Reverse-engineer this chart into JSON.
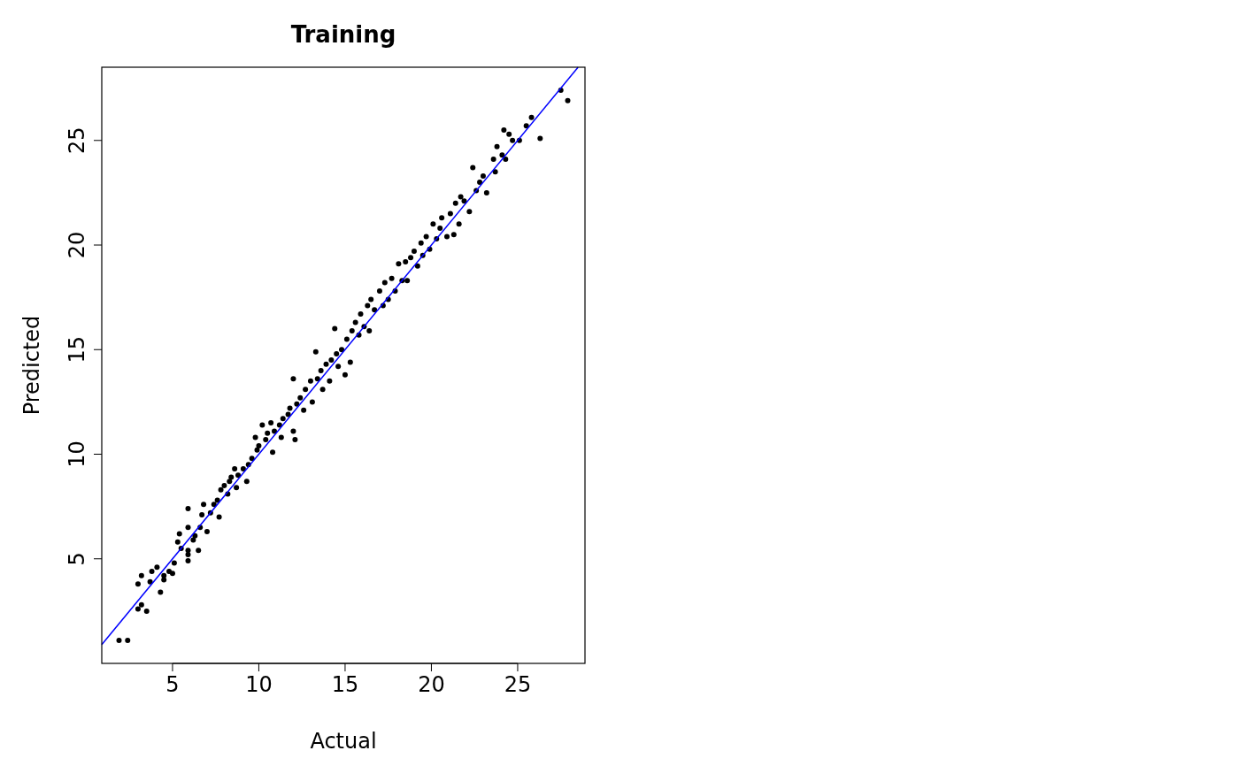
{
  "chart_data": {
    "type": "scatter",
    "title": "Training",
    "xlabel": "Actual",
    "ylabel": "Predicted",
    "xlim": [
      0.9,
      28.9
    ],
    "ylim": [
      0,
      28.5
    ],
    "xticks": [
      5,
      10,
      15,
      20,
      25
    ],
    "yticks": [
      5,
      10,
      15,
      20,
      25
    ],
    "series": [
      {
        "color": "#000000",
        "marker": "circle",
        "x": [
          1.9,
          2.4,
          3.0,
          3.2,
          3.5,
          3.0,
          3.2,
          3.7,
          3.8,
          4.1,
          4.3,
          4.5,
          4.5,
          4.8,
          5.0,
          5.1,
          5.3,
          5.4,
          5.5,
          5.9,
          5.9,
          5.9,
          5.9,
          5.9,
          6.2,
          6.3,
          6.5,
          6.6,
          6.7,
          6.8,
          7.0,
          7.2,
          7.4,
          7.6,
          7.7,
          7.8,
          8.0,
          8.2,
          8.3,
          8.4,
          8.6,
          8.7,
          8.8,
          9.1,
          9.4,
          9.3,
          9.6,
          9.9,
          9.8,
          10.0,
          10.2,
          10.4,
          10.5,
          10.7,
          10.8,
          10.9,
          11.2,
          11.4,
          11.3,
          11.7,
          11.8,
          12.0,
          12.1,
          12.0,
          12.2,
          12.4,
          12.6,
          12.7,
          13.0,
          13.1,
          13.3,
          13.4,
          13.6,
          13.7,
          13.9,
          14.1,
          14.2,
          14.4,
          14.5,
          14.6,
          14.8,
          15.0,
          15.1,
          15.3,
          15.4,
          15.6,
          15.8,
          15.9,
          16.1,
          16.3,
          16.4,
          16.5,
          16.7,
          17.0,
          17.2,
          17.3,
          17.5,
          17.7,
          17.9,
          18.1,
          18.3,
          18.5,
          18.6,
          18.8,
          19.0,
          19.2,
          19.4,
          19.5,
          19.7,
          19.9,
          20.1,
          20.3,
          20.5,
          20.6,
          20.9,
          21.1,
          21.3,
          21.4,
          21.6,
          21.7,
          21.9,
          22.2,
          22.4,
          22.6,
          22.8,
          23.0,
          23.2,
          23.6,
          23.7,
          23.8,
          24.1,
          24.2,
          24.3,
          24.5,
          24.7,
          25.1,
          25.5,
          25.8,
          26.3,
          27.5,
          27.9
        ],
        "values": [
          1.1,
          1.1,
          2.6,
          2.8,
          2.5,
          3.8,
          4.2,
          3.9,
          4.4,
          4.6,
          3.4,
          4.0,
          4.2,
          4.4,
          4.3,
          4.8,
          5.8,
          6.2,
          5.5,
          5.4,
          5.2,
          4.9,
          6.5,
          7.4,
          5.9,
          6.1,
          5.4,
          6.5,
          7.1,
          7.6,
          6.3,
          7.2,
          7.6,
          7.8,
          7.0,
          8.3,
          8.5,
          8.1,
          8.7,
          8.9,
          9.3,
          8.4,
          9.0,
          9.3,
          9.5,
          8.7,
          9.8,
          10.2,
          10.8,
          10.4,
          11.4,
          10.7,
          11.0,
          11.5,
          10.1,
          11.1,
          11.4,
          11.7,
          10.8,
          11.9,
          12.2,
          11.1,
          10.7,
          13.6,
          12.4,
          12.7,
          12.1,
          13.1,
          13.5,
          12.5,
          14.9,
          13.6,
          14.0,
          13.1,
          14.3,
          13.5,
          14.5,
          16.0,
          14.8,
          14.2,
          15.0,
          13.8,
          15.5,
          14.4,
          15.9,
          16.3,
          15.7,
          16.7,
          16.1,
          17.1,
          15.9,
          17.4,
          16.9,
          17.8,
          17.1,
          18.2,
          17.4,
          18.4,
          17.8,
          19.1,
          18.3,
          19.2,
          18.3,
          19.4,
          19.7,
          19.0,
          20.1,
          19.5,
          20.4,
          19.8,
          21.0,
          20.3,
          20.8,
          21.3,
          20.4,
          21.5,
          20.5,
          22.0,
          21.0,
          22.3,
          22.1,
          21.6,
          23.7,
          22.6,
          23.0,
          23.3,
          22.5,
          24.1,
          23.5,
          24.7,
          24.3,
          25.5,
          24.1,
          25.3,
          25.0,
          25.0,
          25.7,
          26.1,
          25.1,
          27.4,
          26.9
        ]
      },
      {
        "type": "line",
        "color": "#0000ff",
        "x": [
          0.9,
          28.5
        ],
        "values": [
          0.9,
          28.5
        ]
      }
    ]
  }
}
